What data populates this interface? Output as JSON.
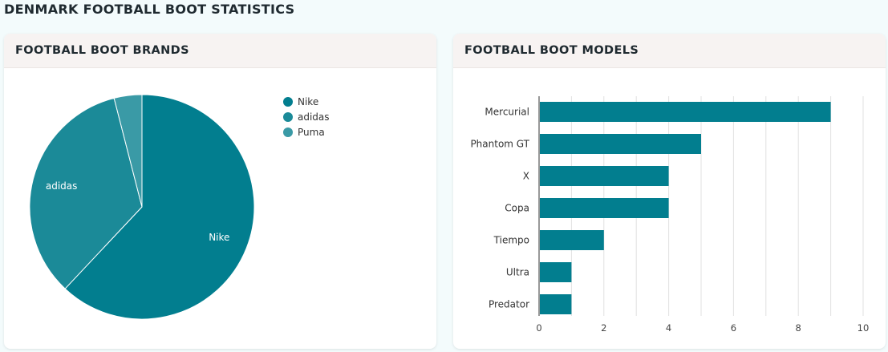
{
  "page": {
    "title": "DENMARK FOOTBALL BOOT STATISTICS"
  },
  "cards": {
    "brands": {
      "title": "FOOTBALL BOOT BRANDS"
    },
    "models": {
      "title": "FOOTBALL BOOT MODELS"
    }
  },
  "chart_data": [
    {
      "type": "pie",
      "title": "FOOTBALL BOOT BRANDS",
      "categories": [
        "Nike",
        "adidas",
        "Puma"
      ],
      "values": [
        62,
        34,
        4
      ],
      "colors": [
        "#027e8f",
        "#1b8a98",
        "#3a9aa6"
      ],
      "slice_labels": [
        "Nike",
        "adidas",
        ""
      ],
      "legend": {
        "position": "top-right",
        "entries": [
          "Nike",
          "adidas",
          "Puma"
        ]
      }
    },
    {
      "type": "bar",
      "orientation": "horizontal",
      "title": "FOOTBALL BOOT MODELS",
      "categories": [
        "Mercurial",
        "Phantom GT",
        "X",
        "Copa",
        "Tiempo",
        "Ultra",
        "Predator"
      ],
      "values": [
        9,
        5,
        4,
        4,
        2,
        1,
        1
      ],
      "color": "#027e8f",
      "xlim": [
        0,
        10
      ],
      "xticks": [
        0,
        2,
        4,
        6,
        8,
        10
      ],
      "grid": true
    }
  ]
}
